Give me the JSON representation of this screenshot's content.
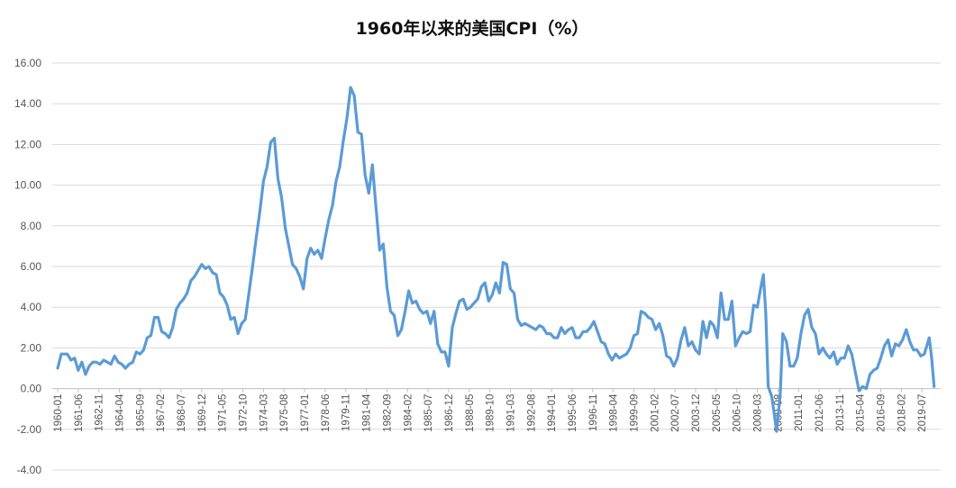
{
  "chart_data": {
    "type": "line",
    "title": "1960年以来的美国CPI（%）",
    "xlabel": "",
    "ylabel": "",
    "ylim": [
      -4,
      16
    ],
    "grid": true,
    "legend": "none",
    "y_ticks": [
      "16.00",
      "14.00",
      "12.00",
      "10.00",
      "8.00",
      "6.00",
      "4.00",
      "2.00",
      "0.00",
      "-2.00",
      "-4.00"
    ],
    "y_tick_values": [
      16,
      14,
      12,
      10,
      8,
      6,
      4,
      2,
      0,
      -2,
      -4
    ],
    "x_ticks": [
      "1960-01",
      "1961-06",
      "1962-11",
      "1964-04",
      "1965-09",
      "1967-02",
      "1968-07",
      "1969-12",
      "1971-05",
      "1972-10",
      "1974-03",
      "1975-08",
      "1977-01",
      "1978-06",
      "1979-11",
      "1981-04",
      "1982-09",
      "1984-02",
      "1985-07",
      "1986-12",
      "1988-05",
      "1989-10",
      "1991-03",
      "1992-08",
      "1994-01",
      "1995-06",
      "1996-11",
      "1998-04",
      "1999-09",
      "2001-02",
      "2002-07",
      "2003-12",
      "2005-05",
      "2006-10",
      "2008-03",
      "2009-08",
      "2011-01",
      "2012-06",
      "2013-11",
      "2015-04",
      "2016-09",
      "2018-02",
      "2019-07"
    ],
    "x_range": [
      "1960-01",
      "2020-06"
    ],
    "series": [
      {
        "color": "#5b9bd5",
        "points": [
          [
            "1960-01",
            1.0
          ],
          [
            "1960-04",
            1.7
          ],
          [
            "1960-09",
            1.7
          ],
          [
            "1960-12",
            1.4
          ],
          [
            "1961-03",
            1.5
          ],
          [
            "1961-06",
            0.9
          ],
          [
            "1961-09",
            1.3
          ],
          [
            "1961-12",
            0.7
          ],
          [
            "1962-03",
            1.1
          ],
          [
            "1962-06",
            1.3
          ],
          [
            "1962-09",
            1.3
          ],
          [
            "1962-12",
            1.2
          ],
          [
            "1963-03",
            1.4
          ],
          [
            "1963-06",
            1.3
          ],
          [
            "1963-09",
            1.2
          ],
          [
            "1963-12",
            1.6
          ],
          [
            "1964-03",
            1.3
          ],
          [
            "1964-06",
            1.2
          ],
          [
            "1964-09",
            1.0
          ],
          [
            "1964-12",
            1.2
          ],
          [
            "1965-03",
            1.3
          ],
          [
            "1965-06",
            1.8
          ],
          [
            "1965-09",
            1.7
          ],
          [
            "1965-12",
            1.9
          ],
          [
            "1966-03",
            2.5
          ],
          [
            "1966-06",
            2.6
          ],
          [
            "1966-09",
            3.5
          ],
          [
            "1966-12",
            3.5
          ],
          [
            "1967-03",
            2.8
          ],
          [
            "1967-06",
            2.7
          ],
          [
            "1967-09",
            2.5
          ],
          [
            "1967-12",
            3.0
          ],
          [
            "1968-03",
            3.9
          ],
          [
            "1968-06",
            4.2
          ],
          [
            "1968-09",
            4.4
          ],
          [
            "1968-12",
            4.7
          ],
          [
            "1969-03",
            5.3
          ],
          [
            "1969-06",
            5.5
          ],
          [
            "1969-09",
            5.8
          ],
          [
            "1969-12",
            6.1
          ],
          [
            "1970-03",
            5.9
          ],
          [
            "1970-06",
            6.0
          ],
          [
            "1970-09",
            5.7
          ],
          [
            "1970-12",
            5.6
          ],
          [
            "1971-03",
            4.7
          ],
          [
            "1971-06",
            4.5
          ],
          [
            "1971-09",
            4.1
          ],
          [
            "1971-12",
            3.4
          ],
          [
            "1972-03",
            3.5
          ],
          [
            "1972-06",
            2.7
          ],
          [
            "1972-09",
            3.2
          ],
          [
            "1972-12",
            3.4
          ],
          [
            "1973-03",
            4.7
          ],
          [
            "1973-06",
            6.0
          ],
          [
            "1973-09",
            7.4
          ],
          [
            "1973-12",
            8.7
          ],
          [
            "1974-03",
            10.2
          ],
          [
            "1974-06",
            10.9
          ],
          [
            "1974-09",
            12.1
          ],
          [
            "1974-12",
            12.3
          ],
          [
            "1975-03",
            10.3
          ],
          [
            "1975-06",
            9.4
          ],
          [
            "1975-09",
            7.9
          ],
          [
            "1975-12",
            7.0
          ],
          [
            "1976-03",
            6.1
          ],
          [
            "1976-06",
            5.9
          ],
          [
            "1976-09",
            5.5
          ],
          [
            "1976-12",
            4.9
          ],
          [
            "1977-03",
            6.4
          ],
          [
            "1977-06",
            6.9
          ],
          [
            "1977-09",
            6.6
          ],
          [
            "1977-12",
            6.8
          ],
          [
            "1978-03",
            6.4
          ],
          [
            "1978-06",
            7.4
          ],
          [
            "1978-09",
            8.3
          ],
          [
            "1978-12",
            9.0
          ],
          [
            "1979-03",
            10.2
          ],
          [
            "1979-06",
            10.9
          ],
          [
            "1979-09",
            12.2
          ],
          [
            "1979-12",
            13.3
          ],
          [
            "1980-03",
            14.8
          ],
          [
            "1980-06",
            14.4
          ],
          [
            "1980-09",
            12.6
          ],
          [
            "1980-12",
            12.5
          ],
          [
            "1981-03",
            10.5
          ],
          [
            "1981-06",
            9.6
          ],
          [
            "1981-09",
            11.0
          ],
          [
            "1981-12",
            8.9
          ],
          [
            "1982-03",
            6.8
          ],
          [
            "1982-06",
            7.1
          ],
          [
            "1982-09",
            5.0
          ],
          [
            "1982-12",
            3.8
          ],
          [
            "1983-03",
            3.6
          ],
          [
            "1983-06",
            2.6
          ],
          [
            "1983-09",
            2.9
          ],
          [
            "1983-12",
            3.8
          ],
          [
            "1984-03",
            4.8
          ],
          [
            "1984-06",
            4.2
          ],
          [
            "1984-09",
            4.3
          ],
          [
            "1984-12",
            3.9
          ],
          [
            "1985-03",
            3.7
          ],
          [
            "1985-06",
            3.8
          ],
          [
            "1985-09",
            3.2
          ],
          [
            "1985-12",
            3.8
          ],
          [
            "1986-03",
            2.2
          ],
          [
            "1986-06",
            1.8
          ],
          [
            "1986-09",
            1.8
          ],
          [
            "1986-12",
            1.1
          ],
          [
            "1987-03",
            3.0
          ],
          [
            "1987-06",
            3.7
          ],
          [
            "1987-09",
            4.3
          ],
          [
            "1987-12",
            4.4
          ],
          [
            "1988-03",
            3.9
          ],
          [
            "1988-06",
            4.0
          ],
          [
            "1988-09",
            4.2
          ],
          [
            "1988-12",
            4.4
          ],
          [
            "1989-03",
            5.0
          ],
          [
            "1989-06",
            5.2
          ],
          [
            "1989-09",
            4.3
          ],
          [
            "1989-12",
            4.6
          ],
          [
            "1990-03",
            5.2
          ],
          [
            "1990-06",
            4.7
          ],
          [
            "1990-09",
            6.2
          ],
          [
            "1990-12",
            6.1
          ],
          [
            "1991-03",
            4.9
          ],
          [
            "1991-06",
            4.7
          ],
          [
            "1991-09",
            3.4
          ],
          [
            "1991-12",
            3.1
          ],
          [
            "1992-03",
            3.2
          ],
          [
            "1992-06",
            3.1
          ],
          [
            "1992-09",
            3.0
          ],
          [
            "1992-12",
            2.9
          ],
          [
            "1993-03",
            3.1
          ],
          [
            "1993-06",
            3.0
          ],
          [
            "1993-09",
            2.7
          ],
          [
            "1993-12",
            2.7
          ],
          [
            "1994-03",
            2.5
          ],
          [
            "1994-06",
            2.5
          ],
          [
            "1994-09",
            3.0
          ],
          [
            "1994-12",
            2.7
          ],
          [
            "1995-03",
            2.9
          ],
          [
            "1995-06",
            3.0
          ],
          [
            "1995-09",
            2.5
          ],
          [
            "1995-12",
            2.5
          ],
          [
            "1996-03",
            2.8
          ],
          [
            "1996-06",
            2.8
          ],
          [
            "1996-09",
            3.0
          ],
          [
            "1996-12",
            3.3
          ],
          [
            "1997-03",
            2.8
          ],
          [
            "1997-06",
            2.3
          ],
          [
            "1997-09",
            2.2
          ],
          [
            "1997-12",
            1.7
          ],
          [
            "1998-03",
            1.4
          ],
          [
            "1998-06",
            1.7
          ],
          [
            "1998-09",
            1.5
          ],
          [
            "1998-12",
            1.6
          ],
          [
            "1999-03",
            1.7
          ],
          [
            "1999-06",
            2.0
          ],
          [
            "1999-09",
            2.6
          ],
          [
            "1999-12",
            2.7
          ],
          [
            "2000-03",
            3.8
          ],
          [
            "2000-06",
            3.7
          ],
          [
            "2000-09",
            3.5
          ],
          [
            "2000-12",
            3.4
          ],
          [
            "2001-03",
            2.9
          ],
          [
            "2001-06",
            3.2
          ],
          [
            "2001-09",
            2.6
          ],
          [
            "2001-12",
            1.6
          ],
          [
            "2002-03",
            1.5
          ],
          [
            "2002-06",
            1.1
          ],
          [
            "2002-09",
            1.5
          ],
          [
            "2002-12",
            2.4
          ],
          [
            "2003-03",
            3.0
          ],
          [
            "2003-06",
            2.1
          ],
          [
            "2003-09",
            2.3
          ],
          [
            "2003-12",
            1.9
          ],
          [
            "2004-03",
            1.7
          ],
          [
            "2004-06",
            3.3
          ],
          [
            "2004-09",
            2.5
          ],
          [
            "2004-12",
            3.3
          ],
          [
            "2005-03",
            3.1
          ],
          [
            "2005-06",
            2.5
          ],
          [
            "2005-09",
            4.7
          ],
          [
            "2005-12",
            3.4
          ],
          [
            "2006-03",
            3.4
          ],
          [
            "2006-06",
            4.3
          ],
          [
            "2006-09",
            2.1
          ],
          [
            "2006-12",
            2.5
          ],
          [
            "2007-03",
            2.8
          ],
          [
            "2007-06",
            2.7
          ],
          [
            "2007-09",
            2.8
          ],
          [
            "2007-12",
            4.1
          ],
          [
            "2008-03",
            4.0
          ],
          [
            "2008-06",
            5.0
          ],
          [
            "2008-08",
            5.6
          ],
          [
            "2008-10",
            3.7
          ],
          [
            "2008-12",
            0.1
          ],
          [
            "2009-03",
            -0.4
          ],
          [
            "2009-07",
            -2.1
          ],
          [
            "2009-10",
            -0.2
          ],
          [
            "2009-12",
            2.7
          ],
          [
            "2010-03",
            2.3
          ],
          [
            "2010-06",
            1.1
          ],
          [
            "2010-09",
            1.1
          ],
          [
            "2010-12",
            1.5
          ],
          [
            "2011-03",
            2.7
          ],
          [
            "2011-06",
            3.6
          ],
          [
            "2011-09",
            3.9
          ],
          [
            "2011-12",
            3.0
          ],
          [
            "2012-03",
            2.7
          ],
          [
            "2012-06",
            1.7
          ],
          [
            "2012-09",
            2.0
          ],
          [
            "2012-12",
            1.7
          ],
          [
            "2013-03",
            1.5
          ],
          [
            "2013-06",
            1.8
          ],
          [
            "2013-09",
            1.2
          ],
          [
            "2013-12",
            1.5
          ],
          [
            "2014-03",
            1.5
          ],
          [
            "2014-06",
            2.1
          ],
          [
            "2014-09",
            1.7
          ],
          [
            "2014-12",
            0.8
          ],
          [
            "2015-03",
            -0.1
          ],
          [
            "2015-06",
            0.1
          ],
          [
            "2015-09",
            0.0
          ],
          [
            "2015-12",
            0.7
          ],
          [
            "2016-03",
            0.9
          ],
          [
            "2016-06",
            1.0
          ],
          [
            "2016-09",
            1.5
          ],
          [
            "2016-12",
            2.1
          ],
          [
            "2017-03",
            2.4
          ],
          [
            "2017-06",
            1.6
          ],
          [
            "2017-09",
            2.2
          ],
          [
            "2017-12",
            2.1
          ],
          [
            "2018-03",
            2.4
          ],
          [
            "2018-06",
            2.9
          ],
          [
            "2018-09",
            2.3
          ],
          [
            "2018-12",
            1.9
          ],
          [
            "2019-03",
            1.9
          ],
          [
            "2019-06",
            1.6
          ],
          [
            "2019-09",
            1.7
          ],
          [
            "2019-12",
            2.3
          ],
          [
            "2020-01",
            2.5
          ],
          [
            "2020-03",
            1.5
          ],
          [
            "2020-05",
            0.1
          ]
        ]
      }
    ]
  }
}
